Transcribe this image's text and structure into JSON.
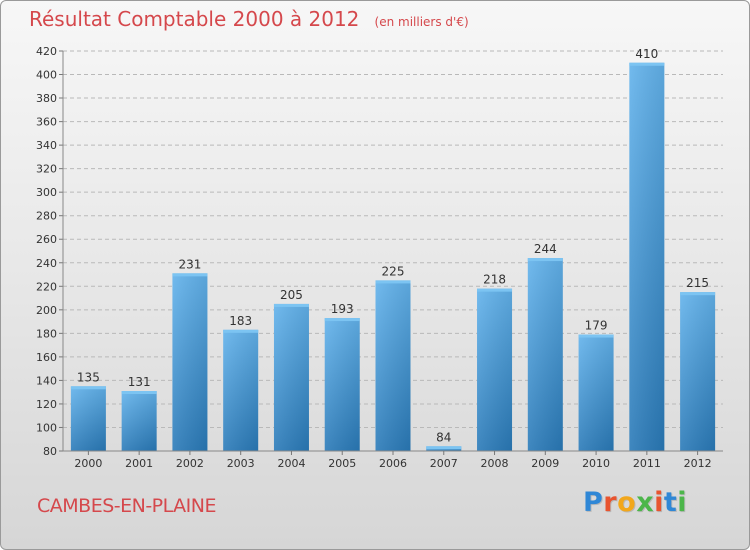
{
  "chart_data": {
    "type": "bar",
    "title": "Résultat Comptable 2000 à 2012",
    "unit_label": "(en milliers d'€)",
    "categories": [
      "2000",
      "2001",
      "2002",
      "2003",
      "2004",
      "2005",
      "2006",
      "2007",
      "2008",
      "2009",
      "2010",
      "2011",
      "2012"
    ],
    "values": [
      135,
      131,
      231,
      183,
      205,
      193,
      225,
      84,
      218,
      244,
      179,
      410,
      215
    ],
    "ylim": [
      80,
      420
    ],
    "yticks": [
      80,
      100,
      120,
      140,
      160,
      180,
      200,
      220,
      240,
      260,
      280,
      300,
      320,
      340,
      360,
      380,
      400,
      420
    ],
    "grid": true,
    "xlabel": "",
    "ylabel": ""
  },
  "footer": {
    "commune": "CAMBES-EN-PLAINE",
    "brand": "Proxiti"
  },
  "colors": {
    "title": "#d5484c",
    "bar_light": "#63b3ec",
    "bar_dark": "#2a7ab8"
  }
}
